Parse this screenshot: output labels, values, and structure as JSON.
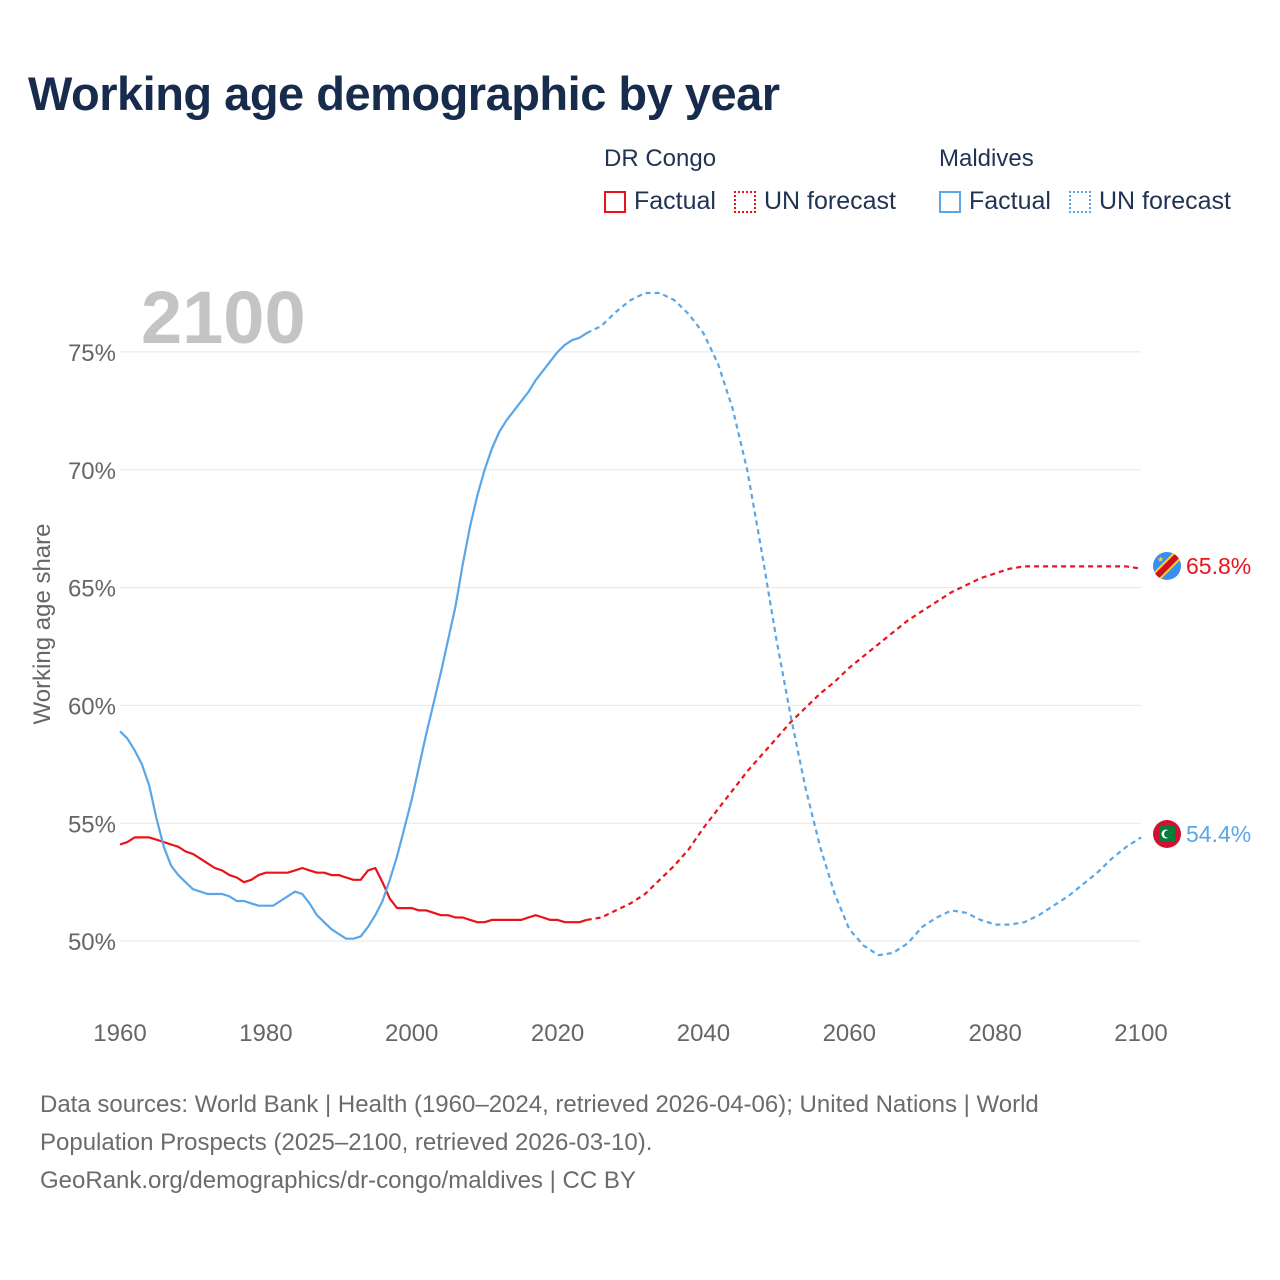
{
  "title": "Working age demographic by year",
  "legend": {
    "groups": [
      {
        "name": "DR Congo",
        "color": "#e8141c",
        "factual_label": "Factual",
        "forecast_label": "UN forecast"
      },
      {
        "name": "Maldives",
        "color": "#5aa6e6",
        "factual_label": "Factual",
        "forecast_label": "UN forecast"
      }
    ]
  },
  "year_watermark": "2100",
  "end_labels": {
    "drc": {
      "value": "65.8%",
      "flag_icon": "dr-congo-flag-icon"
    },
    "maldives": {
      "value": "54.4%",
      "flag_icon": "maldives-flag-icon"
    }
  },
  "source": {
    "line1": "Data sources: World Bank | Health (1960–2024, retrieved 2026-04-06); United Nations | World",
    "line2": "Population Prospects (2025–2100, retrieved 2026-03-10).",
    "line3": "GeoRank.org/demographics/dr-congo/maldives | CC BY"
  },
  "chart_data": {
    "type": "line",
    "title": "Working age demographic by year",
    "xlabel": "",
    "ylabel": "Working age share",
    "xlim": [
      1960,
      2100
    ],
    "ylim": [
      47.5,
      77.5
    ],
    "x_ticks": [
      1960,
      1980,
      2000,
      2020,
      2040,
      2060,
      2080,
      2100
    ],
    "x_tick_labels": [
      "1960",
      "1980",
      "2000",
      "2020",
      "2040",
      "2060",
      "2080",
      "2100"
    ],
    "y_ticks": [
      50,
      55,
      60,
      65,
      70,
      75
    ],
    "y_tick_labels": [
      "50%",
      "55%",
      "60%",
      "65%",
      "70%",
      "75%"
    ],
    "grid": true,
    "series": [
      {
        "name": "DR Congo",
        "color": "#e8141c",
        "factual": [
          [
            1960,
            54.1
          ],
          [
            1961,
            54.2
          ],
          [
            1962,
            54.4
          ],
          [
            1963,
            54.4
          ],
          [
            1964,
            54.4
          ],
          [
            1965,
            54.3
          ],
          [
            1966,
            54.2
          ],
          [
            1967,
            54.1
          ],
          [
            1968,
            54.0
          ],
          [
            1969,
            53.8
          ],
          [
            1970,
            53.7
          ],
          [
            1971,
            53.5
          ],
          [
            1972,
            53.3
          ],
          [
            1973,
            53.1
          ],
          [
            1974,
            53.0
          ],
          [
            1975,
            52.8
          ],
          [
            1976,
            52.7
          ],
          [
            1977,
            52.5
          ],
          [
            1978,
            52.6
          ],
          [
            1979,
            52.8
          ],
          [
            1980,
            52.9
          ],
          [
            1981,
            52.9
          ],
          [
            1982,
            52.9
          ],
          [
            1983,
            52.9
          ],
          [
            1984,
            53.0
          ],
          [
            1985,
            53.1
          ],
          [
            1986,
            53.0
          ],
          [
            1987,
            52.9
          ],
          [
            1988,
            52.9
          ],
          [
            1989,
            52.8
          ],
          [
            1990,
            52.8
          ],
          [
            1991,
            52.7
          ],
          [
            1992,
            52.6
          ],
          [
            1993,
            52.6
          ],
          [
            1994,
            53.0
          ],
          [
            1995,
            53.1
          ],
          [
            1996,
            52.5
          ],
          [
            1997,
            51.8
          ],
          [
            1998,
            51.4
          ],
          [
            1999,
            51.4
          ],
          [
            2000,
            51.4
          ],
          [
            2001,
            51.3
          ],
          [
            2002,
            51.3
          ],
          [
            2003,
            51.2
          ],
          [
            2004,
            51.1
          ],
          [
            2005,
            51.1
          ],
          [
            2006,
            51.0
          ],
          [
            2007,
            51.0
          ],
          [
            2008,
            50.9
          ],
          [
            2009,
            50.8
          ],
          [
            2010,
            50.8
          ],
          [
            2011,
            50.9
          ],
          [
            2012,
            50.9
          ],
          [
            2013,
            50.9
          ],
          [
            2014,
            50.9
          ],
          [
            2015,
            50.9
          ],
          [
            2016,
            51.0
          ],
          [
            2017,
            51.1
          ],
          [
            2018,
            51.0
          ],
          [
            2019,
            50.9
          ],
          [
            2020,
            50.9
          ],
          [
            2021,
            50.8
          ],
          [
            2022,
            50.8
          ],
          [
            2023,
            50.8
          ],
          [
            2024,
            50.9
          ]
        ],
        "forecast": [
          [
            2024,
            50.9
          ],
          [
            2026,
            51.0
          ],
          [
            2028,
            51.3
          ],
          [
            2030,
            51.6
          ],
          [
            2032,
            52.0
          ],
          [
            2034,
            52.6
          ],
          [
            2036,
            53.2
          ],
          [
            2038,
            53.9
          ],
          [
            2040,
            54.8
          ],
          [
            2042,
            55.6
          ],
          [
            2044,
            56.4
          ],
          [
            2046,
            57.2
          ],
          [
            2048,
            57.9
          ],
          [
            2050,
            58.6
          ],
          [
            2052,
            59.3
          ],
          [
            2054,
            59.9
          ],
          [
            2056,
            60.5
          ],
          [
            2058,
            61.0
          ],
          [
            2060,
            61.6
          ],
          [
            2062,
            62.1
          ],
          [
            2064,
            62.6
          ],
          [
            2066,
            63.1
          ],
          [
            2068,
            63.6
          ],
          [
            2070,
            64.0
          ],
          [
            2072,
            64.4
          ],
          [
            2074,
            64.8
          ],
          [
            2076,
            65.1
          ],
          [
            2078,
            65.4
          ],
          [
            2080,
            65.6
          ],
          [
            2082,
            65.8
          ],
          [
            2084,
            65.9
          ],
          [
            2086,
            65.9
          ],
          [
            2088,
            65.9
          ],
          [
            2090,
            65.9
          ],
          [
            2092,
            65.9
          ],
          [
            2094,
            65.9
          ],
          [
            2096,
            65.9
          ],
          [
            2098,
            65.9
          ],
          [
            2100,
            65.8
          ]
        ],
        "end_value": 65.8
      },
      {
        "name": "Maldives",
        "color": "#5aa6e6",
        "factual": [
          [
            1960,
            58.9
          ],
          [
            1961,
            58.6
          ],
          [
            1962,
            58.1
          ],
          [
            1963,
            57.5
          ],
          [
            1964,
            56.6
          ],
          [
            1965,
            55.2
          ],
          [
            1966,
            54.0
          ],
          [
            1967,
            53.2
          ],
          [
            1968,
            52.8
          ],
          [
            1969,
            52.5
          ],
          [
            1970,
            52.2
          ],
          [
            1971,
            52.1
          ],
          [
            1972,
            52.0
          ],
          [
            1973,
            52.0
          ],
          [
            1974,
            52.0
          ],
          [
            1975,
            51.9
          ],
          [
            1976,
            51.7
          ],
          [
            1977,
            51.7
          ],
          [
            1978,
            51.6
          ],
          [
            1979,
            51.5
          ],
          [
            1980,
            51.5
          ],
          [
            1981,
            51.5
          ],
          [
            1982,
            51.7
          ],
          [
            1983,
            51.9
          ],
          [
            1984,
            52.1
          ],
          [
            1985,
            52.0
          ],
          [
            1986,
            51.6
          ],
          [
            1987,
            51.1
          ],
          [
            1988,
            50.8
          ],
          [
            1989,
            50.5
          ],
          [
            1990,
            50.3
          ],
          [
            1991,
            50.1
          ],
          [
            1992,
            50.1
          ],
          [
            1993,
            50.2
          ],
          [
            1994,
            50.6
          ],
          [
            1995,
            51.1
          ],
          [
            1996,
            51.7
          ],
          [
            1997,
            52.6
          ],
          [
            1998,
            53.6
          ],
          [
            1999,
            54.8
          ],
          [
            2000,
            56.0
          ],
          [
            2001,
            57.4
          ],
          [
            2002,
            58.8
          ],
          [
            2003,
            60.1
          ],
          [
            2004,
            61.4
          ],
          [
            2005,
            62.8
          ],
          [
            2006,
            64.2
          ],
          [
            2007,
            66.0
          ],
          [
            2008,
            67.6
          ],
          [
            2009,
            68.9
          ],
          [
            2010,
            70.0
          ],
          [
            2011,
            70.9
          ],
          [
            2012,
            71.6
          ],
          [
            2013,
            72.1
          ],
          [
            2014,
            72.5
          ],
          [
            2015,
            72.9
          ],
          [
            2016,
            73.3
          ],
          [
            2017,
            73.8
          ],
          [
            2018,
            74.2
          ],
          [
            2019,
            74.6
          ],
          [
            2020,
            75.0
          ],
          [
            2021,
            75.3
          ],
          [
            2022,
            75.5
          ],
          [
            2023,
            75.6
          ],
          [
            2024,
            75.8
          ]
        ],
        "forecast": [
          [
            2024,
            75.8
          ],
          [
            2026,
            76.1
          ],
          [
            2028,
            76.7
          ],
          [
            2030,
            77.2
          ],
          [
            2032,
            77.5
          ],
          [
            2034,
            77.5
          ],
          [
            2036,
            77.2
          ],
          [
            2038,
            76.6
          ],
          [
            2040,
            75.8
          ],
          [
            2042,
            74.5
          ],
          [
            2044,
            72.6
          ],
          [
            2046,
            70.0
          ],
          [
            2048,
            66.5
          ],
          [
            2050,
            62.8
          ],
          [
            2052,
            59.5
          ],
          [
            2054,
            56.5
          ],
          [
            2056,
            54.0
          ],
          [
            2058,
            52.0
          ],
          [
            2060,
            50.5
          ],
          [
            2062,
            49.8
          ],
          [
            2064,
            49.4
          ],
          [
            2066,
            49.5
          ],
          [
            2068,
            49.9
          ],
          [
            2070,
            50.6
          ],
          [
            2072,
            51.0
          ],
          [
            2074,
            51.3
          ],
          [
            2076,
            51.2
          ],
          [
            2078,
            50.9
          ],
          [
            2080,
            50.7
          ],
          [
            2082,
            50.7
          ],
          [
            2084,
            50.8
          ],
          [
            2086,
            51.1
          ],
          [
            2088,
            51.5
          ],
          [
            2090,
            51.9
          ],
          [
            2092,
            52.4
          ],
          [
            2094,
            52.9
          ],
          [
            2096,
            53.5
          ],
          [
            2098,
            54.0
          ],
          [
            2100,
            54.4
          ]
        ],
        "end_value": 54.4
      }
    ]
  }
}
